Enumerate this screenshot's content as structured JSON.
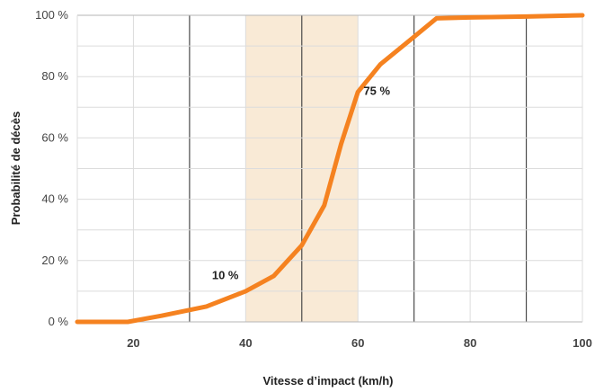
{
  "chart_data": {
    "type": "line",
    "title": "",
    "xlabel": "Vitesse d’impact (km/h)",
    "ylabel": "Probabilité de décès",
    "xlim": [
      10,
      100
    ],
    "ylim": [
      0,
      100
    ],
    "x_ticks": [
      20,
      40,
      60,
      80,
      100
    ],
    "x_tick_labels": [
      "20",
      "40",
      "60",
      "80",
      "100"
    ],
    "y_ticks": [
      0,
      20,
      40,
      60,
      80,
      100
    ],
    "y_tick_labels": [
      "0 %",
      "20 %",
      "40 %",
      "60 %",
      "80 %",
      "100 %"
    ],
    "grid": true,
    "highlight_range": {
      "x": [
        40,
        60
      ],
      "color": "#f9ead6"
    },
    "series": [
      {
        "color": "#f58220",
        "x": [
          10,
          19,
          25,
          33,
          40,
          45,
          50,
          54,
          57,
          60,
          64,
          70,
          74,
          80,
          90,
          100
        ],
        "y": [
          0,
          0,
          2,
          5,
          10,
          15,
          25,
          38,
          58,
          75,
          84,
          93,
          99,
          99.3,
          99.6,
          100
        ]
      }
    ],
    "annotations": [
      {
        "text": "75 %",
        "x": 61,
        "y": 74
      },
      {
        "text": "10 %",
        "x": 34,
        "y": 14
      }
    ]
  }
}
